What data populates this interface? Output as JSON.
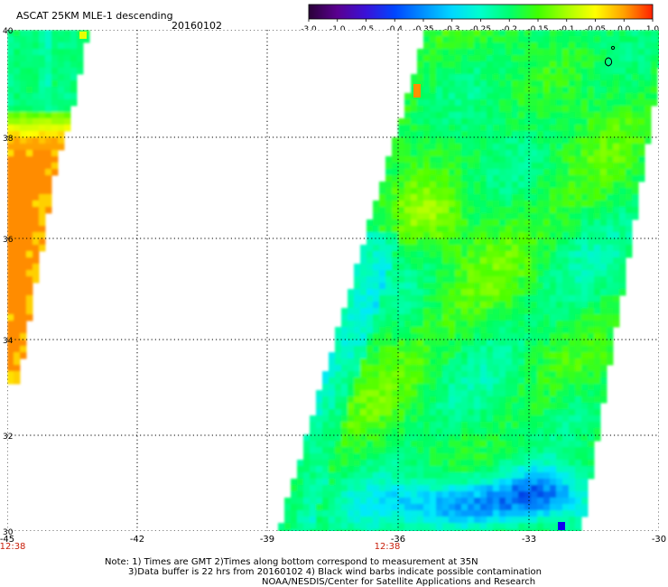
{
  "header": {
    "title": "ASCAT 25KM MLE-1 descending",
    "date": "20160102"
  },
  "colorbar": {
    "tick_labels": [
      "-3.0",
      "-1.0",
      "-0.5",
      "-0.4",
      "-0.35",
      "-0.3",
      "-0.25",
      "-0.2",
      "-0.15",
      "-0.1",
      "-0.05",
      "0.0",
      "1.0"
    ],
    "colors": [
      "#2a0038",
      "#5a0090",
      "#3a12d8",
      "#0046ff",
      "#0090ff",
      "#00d8ff",
      "#00ffcc",
      "#00ff70",
      "#40ff00",
      "#a8ff00",
      "#ffff00",
      "#ffa000",
      "#ff2000"
    ]
  },
  "map": {
    "x_ticks": [
      "-45",
      "-42",
      "-39",
      "-36",
      "-33",
      "-30"
    ],
    "y_ticks": [
      "40",
      "38",
      "36",
      "34",
      "32",
      "30"
    ],
    "pass_times": [
      "12:38",
      "12:38"
    ],
    "pass_time_color": "#c81e0a",
    "gridline_style": "dotted black"
  },
  "footer": {
    "note_line_1": "Note: 1) Times are GMT 2)Times along bottom correspond to measurement at 35N",
    "note_line_2": "3)Data buffer is 22 hrs from 20160102 4) Black wind barbs indicate possible contamination",
    "credit": "NOAA/NESDIS/Center for Satellite Applications and Research"
  }
}
